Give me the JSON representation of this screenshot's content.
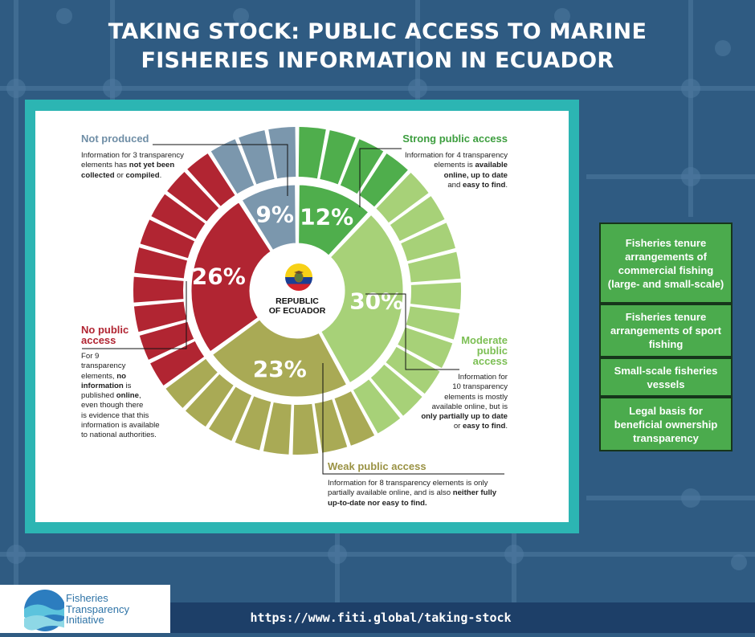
{
  "title_line1": "TAKING STOCK: PUBLIC ACCESS TO MARINE",
  "title_line2": "FISHERIES INFORMATION IN ECUADOR",
  "center_label_line1": "REPUBLIC",
  "center_label_line2": "OF ECUADOR",
  "colors": {
    "not_produced": "#7b97ad",
    "strong": "#4fae4c",
    "moderate": "#a7d178",
    "weak": "#a9aa55",
    "no_access": "#b12532",
    "frame": "#2cb5b3",
    "side_box": "#4bab4d"
  },
  "chart_data": {
    "type": "pie",
    "categories": [
      "Not produced",
      "Strong public access",
      "Moderate public access",
      "Weak public access",
      "No public access"
    ],
    "values": [
      9,
      12,
      30,
      23,
      26
    ],
    "value_labels": [
      "9%",
      "12%",
      "30%",
      "23%",
      "26%"
    ],
    "counts": [
      3,
      4,
      10,
      8,
      9
    ]
  },
  "annotations": {
    "not_produced": {
      "title": "Not produced",
      "p1": "Information for 3 transparency",
      "p2a": "elements has ",
      "p2b": "not yet been",
      "p3a": "collected",
      "p3b": " or ",
      "p3c": "compiled",
      "p3d": "."
    },
    "strong": {
      "title": "Strong public access",
      "p1": "Information for 4 transparency",
      "p2a": "elements is ",
      "p2b": "available",
      "p3": "online, up to date",
      "p4a": "and ",
      "p4b": "easy to find",
      "p4c": "."
    },
    "moderate": {
      "title1": "Moderate",
      "title2": "public",
      "title3": "access",
      "p1": "Information for",
      "p2": "10 transparency",
      "p3": "elements is mostly",
      "p4": "available online, but is",
      "p5": "only partially up to date",
      "p6a": "or ",
      "p6b": "easy to find",
      "p6c": "."
    },
    "weak": {
      "title": "Weak public access",
      "p1": "Information for 8 transparency elements is only",
      "p2a": "partially available online, and is also ",
      "p2b": "neither fully",
      "p3": "up-to-date nor easy to find."
    },
    "no_access": {
      "title1": "No public",
      "title2": "access",
      "p1": "For 9",
      "p2": "transparency",
      "p3a": "elements, ",
      "p3b": "no",
      "p4": "information",
      "p4b": " is",
      "p5a": "published ",
      "p5b": "online",
      "p5c": ",",
      "p6": "even though there",
      "p7": "is evidence that this",
      "p8": "information is available",
      "p9": "to national authorities."
    }
  },
  "side_boxes": [
    "Fisheries tenure arrangements of commercial fishing (large- and small-scale)",
    "Fisheries tenure arrangements of sport fishing",
    "Small-scale fisheries vessels",
    "Legal basis for beneficial ownership transparency"
  ],
  "footer_url": "https://www.fiti.global/taking-stock",
  "logo": {
    "line1": "Fisheries",
    "line2": "Transparency",
    "line3": "Initiative"
  }
}
